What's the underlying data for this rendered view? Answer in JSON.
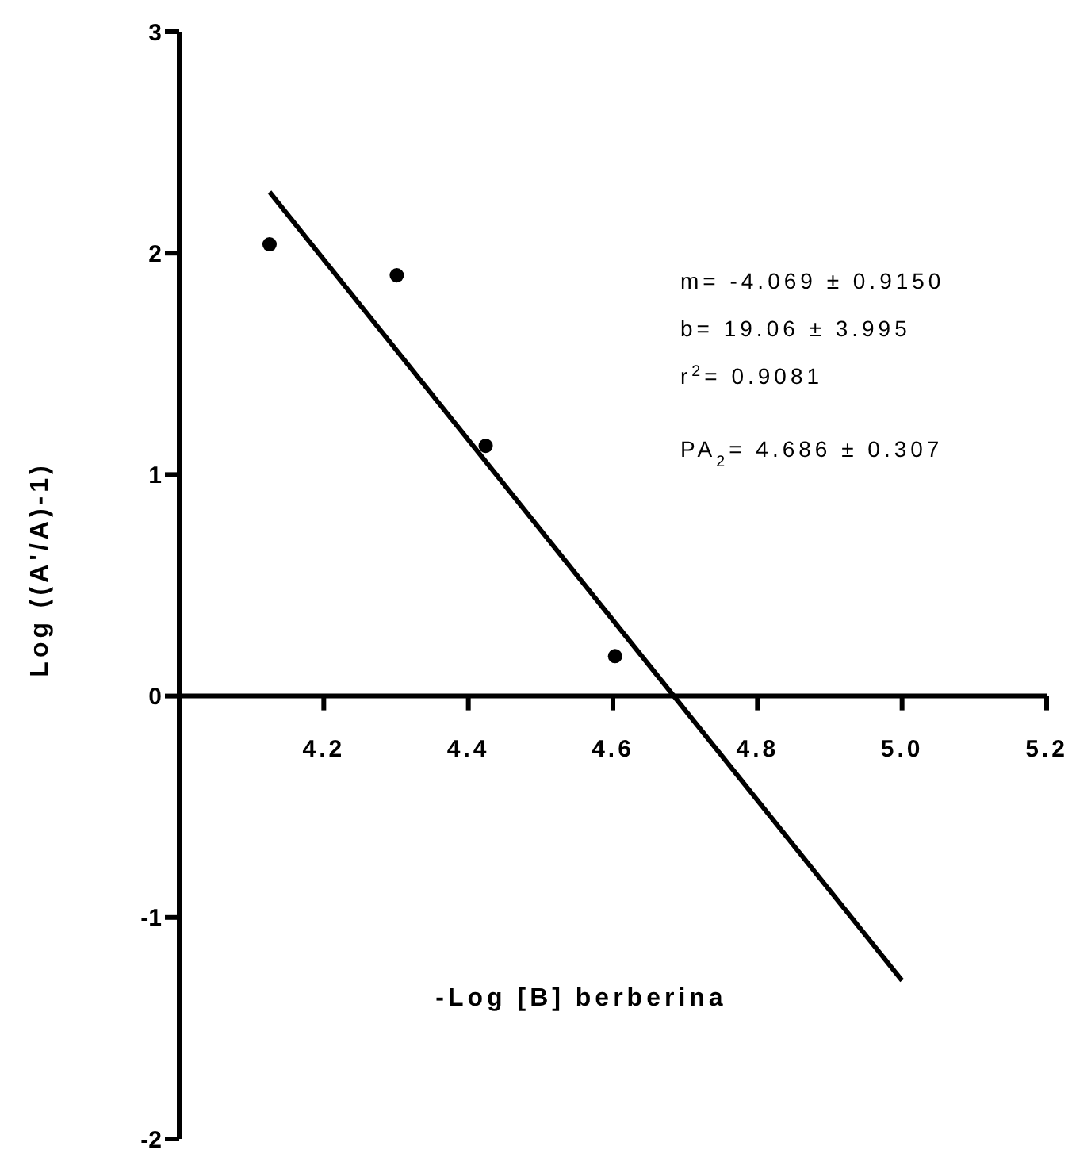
{
  "chart_data": {
    "type": "scatter",
    "xlabel": "-Log [B] berberina",
    "ylabel": "Log ((A'/A)-1)",
    "xlim": [
      4.0,
      5.2
    ],
    "xticks": [
      4.2,
      4.4,
      4.6,
      4.8,
      {
        "value": 5,
        "label": "5.0"
      },
      5.2
    ],
    "ylim": [
      -2,
      3
    ],
    "yticks": [
      -2,
      -1,
      0,
      1,
      2,
      3
    ],
    "grid": false,
    "series": [
      {
        "marker": "circle",
        "color": "#000000",
        "x": [
          4.125,
          4.301,
          4.424,
          4.603
        ],
        "values": [
          2.04,
          1.9,
          1.13,
          0.18
        ]
      },
      {
        "type": "line",
        "marker": "none",
        "color": "#000000",
        "x": [
          4.125,
          5.0
        ],
        "values": [
          2.276,
          -1.285
        ]
      }
    ],
    "annotations": [
      "m= -4.069 ± 0.9150",
      "b= 19.06 ± 3.995",
      "r$^{2}$= 0.9081",
      "PA$_{2}$= 4.686 ±  0.307"
    ]
  }
}
